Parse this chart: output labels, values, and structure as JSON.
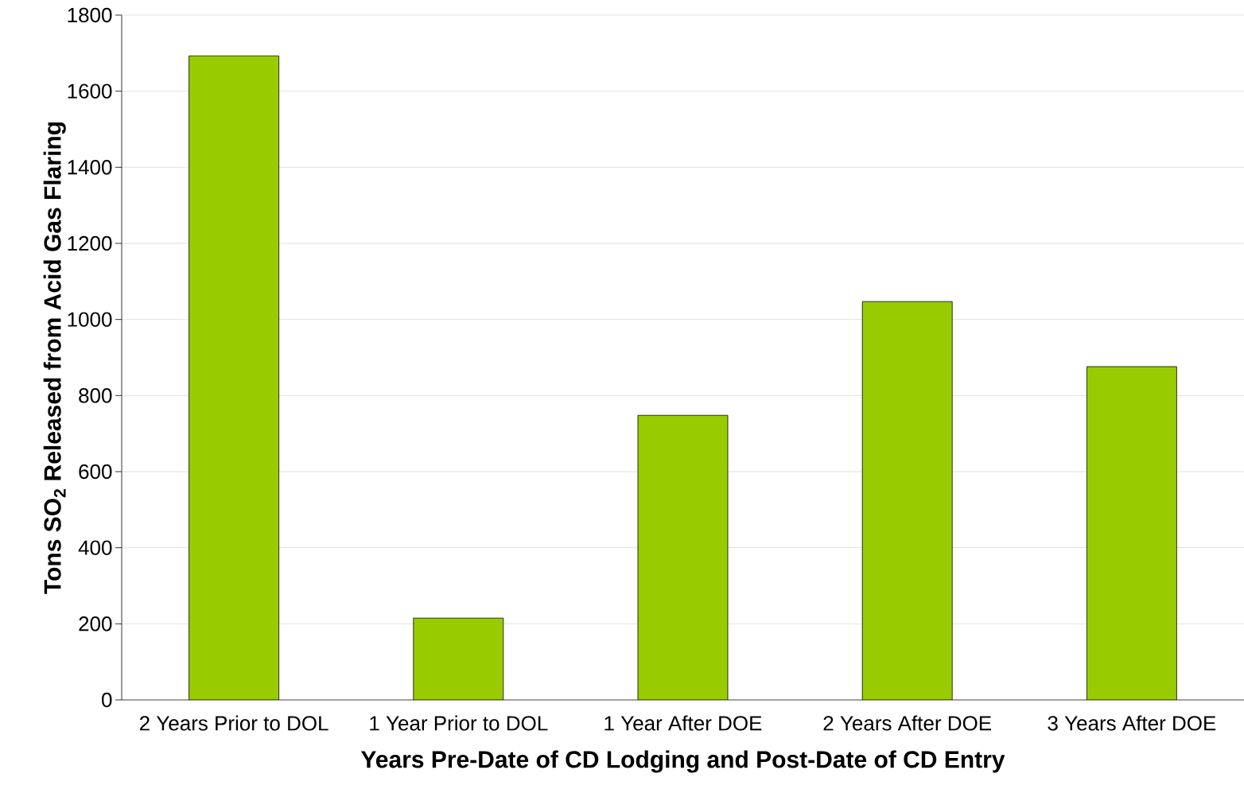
{
  "chart_data": {
    "type": "bar",
    "xlabel": "Years Pre-Date of CD Lodging and Post-Date of CD Entry",
    "ylabel": "Tons SO$_{2}$ Released from Acid Gas Flaring",
    "categories": [
      "2 Years Prior to DOL",
      "1 Year Prior to DOL",
      "1 Year After DOE",
      "2 Years After DOE",
      "3 Years After DOE"
    ],
    "values": [
      1693,
      215,
      748,
      1047,
      876
    ],
    "color": "#99cc00",
    "ylim": [
      0,
      1800
    ],
    "yticks": [
      0,
      200,
      400,
      600,
      800,
      1000,
      1200,
      1400,
      1600,
      1800
    ],
    "grid": "y"
  }
}
